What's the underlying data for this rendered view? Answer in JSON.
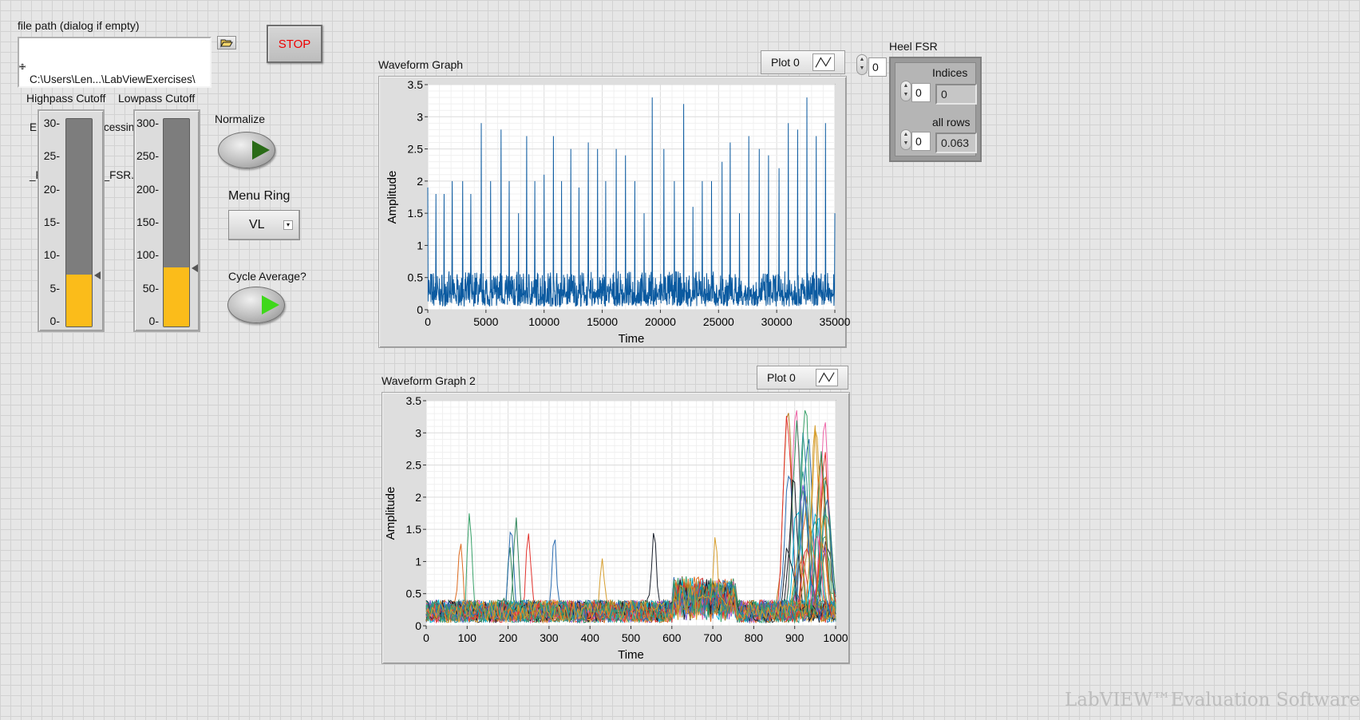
{
  "file_path": {
    "label": "file path (dialog if empty)",
    "lines": [
      "C:\\Users\\Len...\\LabViewExercises\\",
      "EMGSignal Processing\\EMG_+",
      "_FSR - EMG_+_FSR.csv"
    ]
  },
  "stop_label": "STOP",
  "highpass": {
    "label": "Highpass Cutoff",
    "ticks": [
      "30",
      "25",
      "20",
      "15",
      "10",
      "5",
      "0"
    ],
    "max": 30,
    "value": 7.5
  },
  "lowpass": {
    "label": "Lowpass Cutoff",
    "ticks": [
      "300",
      "250",
      "200",
      "150",
      "100",
      "50",
      "0"
    ],
    "max": 300,
    "value": 85
  },
  "normalize_label": "Normalize",
  "menu_ring": {
    "label": "Menu Ring",
    "value": "VL"
  },
  "cycle_average_label": "Cycle Average?",
  "graph1": {
    "title": "Waveform Graph",
    "legend": "Plot 0",
    "xlabel": "Time",
    "ylabel": "Amplitude",
    "xticks": [
      "0",
      "5000",
      "10000",
      "15000",
      "20000",
      "25000",
      "30000",
      "35000"
    ],
    "yticks": [
      "3.5",
      "3",
      "2.5",
      "2",
      "1.5",
      "1",
      "0.5",
      "0"
    ]
  },
  "graph2": {
    "title": "Waveform Graph 2",
    "legend": "Plot 0",
    "xlabel": "Time",
    "ylabel": "Amplitude",
    "xticks": [
      "0",
      "100",
      "200",
      "300",
      "400",
      "500",
      "600",
      "700",
      "800",
      "900",
      "1000"
    ],
    "yticks": [
      "3.5",
      "3",
      "2.5",
      "2",
      "1.5",
      "1",
      "0.5",
      "0"
    ]
  },
  "heel_fsr": {
    "label": "Heel FSR",
    "outer_index": "0",
    "indices_label": "Indices",
    "indices_index": "0",
    "indices_value": "0",
    "allrows_label": "all rows",
    "allrows_index": "0",
    "allrows_value": "0.063"
  },
  "watermark": "LabVIEW™Evaluation Software",
  "chart_data": [
    {
      "type": "line",
      "title": "Waveform Graph",
      "xlabel": "Time",
      "ylabel": "Amplitude",
      "xlim": [
        0,
        35000
      ],
      "ylim": [
        0,
        3.5
      ],
      "series": [
        {
          "name": "Plot 0",
          "color": "#0b5aa0",
          "peaks_x": [
            0,
            700,
            1400,
            2100,
            3000,
            3700,
            4600,
            5400,
            6300,
            7000,
            7800,
            8500,
            9200,
            10000,
            10800,
            11500,
            12300,
            13000,
            13800,
            14600,
            15300,
            16200,
            17000,
            17800,
            18600,
            19300,
            20300,
            21200,
            22000,
            22800,
            23600,
            24400,
            25300,
            26000,
            26800,
            27600,
            28500,
            29300,
            30200,
            31000,
            31800,
            32600,
            33400,
            34200,
            35000
          ],
          "peaks_y": [
            1.9,
            1.8,
            1.8,
            2.0,
            2.0,
            1.8,
            2.9,
            2.0,
            2.8,
            2.0,
            1.5,
            2.7,
            2.0,
            2.1,
            2.7,
            2.0,
            2.5,
            1.9,
            2.6,
            2.5,
            2.0,
            2.5,
            2.4,
            2.0,
            1.5,
            3.3,
            2.5,
            2.0,
            3.2,
            1.6,
            2.0,
            2.0,
            2.3,
            2.6,
            1.5,
            2.7,
            2.5,
            2.4,
            2.2,
            2.9,
            2.8,
            3.3,
            2.7,
            2.9,
            1.5
          ],
          "baseline": [
            0.05,
            0.6
          ]
        }
      ]
    },
    {
      "type": "line",
      "title": "Waveform Graph 2",
      "xlabel": "Time",
      "ylabel": "Amplitude",
      "xlim": [
        0,
        1000
      ],
      "ylim": [
        0,
        3.5
      ],
      "series_count": 40,
      "colors": [
        "#e3342f",
        "#2b6cb0",
        "#38a169",
        "#d69e2e",
        "#805ad5",
        "#00b5d8",
        "#ed64a6",
        "#2f855a",
        "#dd6b20",
        "#1a202c",
        "#b7791f",
        "#319795"
      ],
      "peak_region": [
        880,
        980
      ],
      "peak_max": 3.3
    }
  ]
}
